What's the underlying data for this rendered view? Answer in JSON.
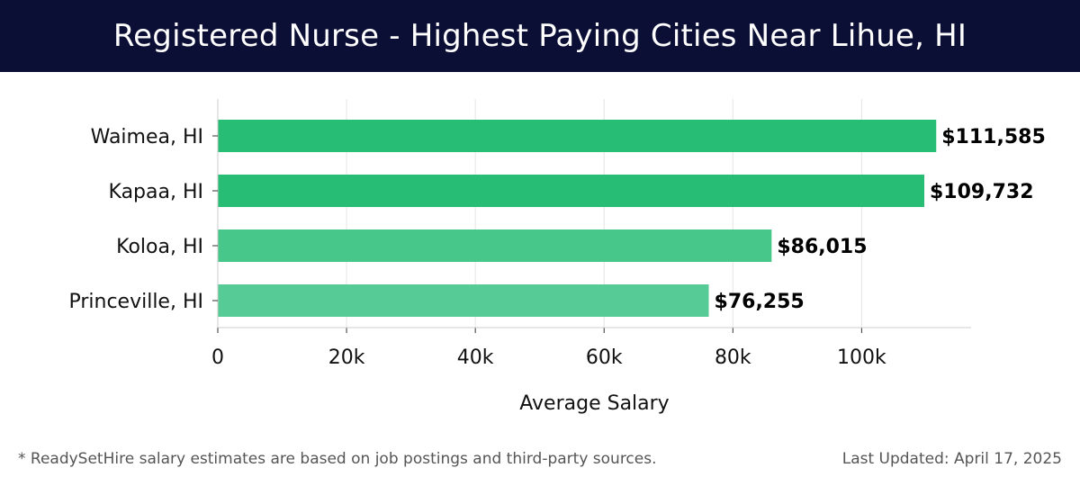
{
  "header": {
    "title": "Registered Nurse - Highest Paying Cities Near Lihue, HI"
  },
  "chart_data": {
    "type": "bar",
    "orientation": "horizontal",
    "categories": [
      "Waimea, HI",
      "Kapaa, HI",
      "Koloa, HI",
      "Princeville, HI"
    ],
    "values": [
      111585,
      109732,
      86015,
      76255
    ],
    "value_labels": [
      "$111,585",
      "$109,732",
      "$86,015",
      "$76,255"
    ],
    "bar_colors": [
      "#27bd74",
      "#27bd74",
      "#47c78a",
      "#57cb95"
    ],
    "xlabel": "Average Salary",
    "ylabel": "",
    "xlim": [
      0,
      117000
    ],
    "xticks": [
      0,
      20000,
      40000,
      60000,
      80000,
      100000
    ],
    "xtick_labels": [
      "0",
      "20k",
      "40k",
      "60k",
      "80k",
      "100k"
    ],
    "grid": "vertical"
  },
  "footer": {
    "note": "* ReadySetHire salary estimates are based on job postings and third-party sources.",
    "updated": "Last Updated: April 17, 2025"
  }
}
